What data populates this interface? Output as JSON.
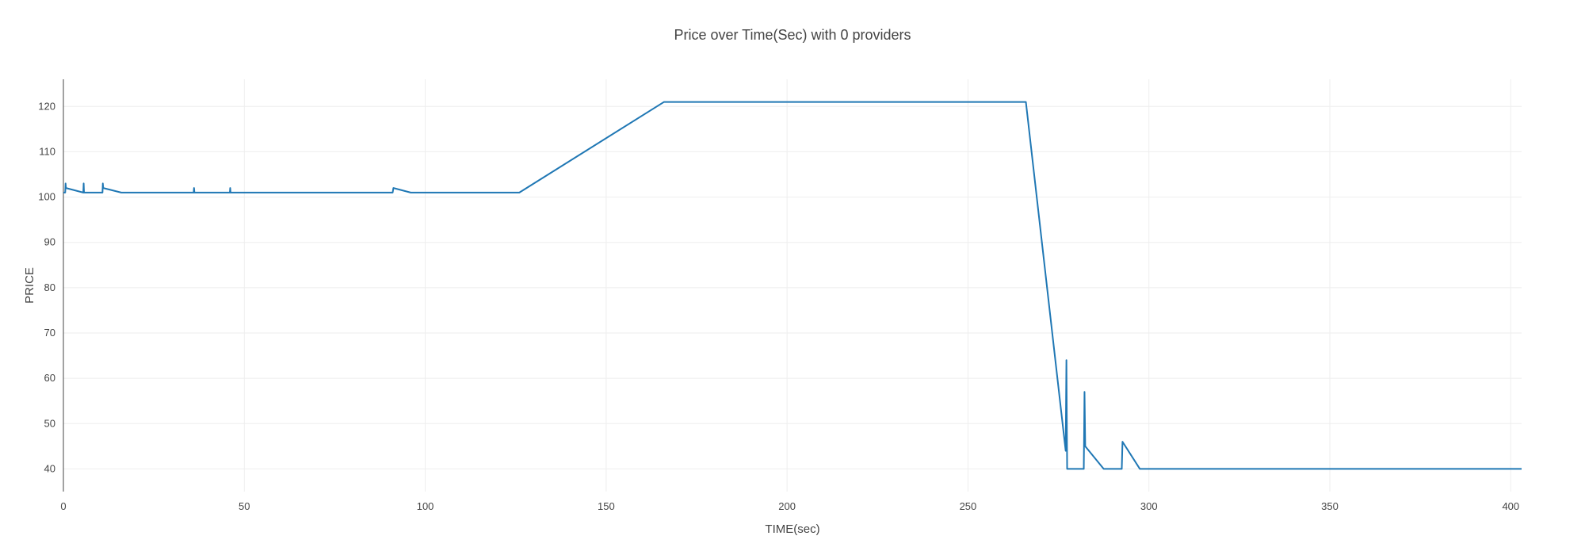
{
  "chart_data": {
    "type": "line",
    "title": "Price over Time(Sec) with 0 providers",
    "xlabel": "TIME(sec)",
    "ylabel": "PRICE",
    "xlim": [
      0,
      403
    ],
    "ylim": [
      35,
      126
    ],
    "xticks": [
      0,
      50,
      100,
      150,
      200,
      250,
      300,
      350,
      400
    ],
    "yticks": [
      40,
      50,
      60,
      70,
      80,
      90,
      100,
      110,
      120
    ],
    "grid": true,
    "colors": {
      "line": "#1f77b4",
      "axis": "#444444",
      "grid": "#eeeeee",
      "text": "#444444"
    },
    "series": [
      {
        "name": "price",
        "points": [
          [
            0,
            101
          ],
          [
            0.5,
            101
          ],
          [
            0.6,
            103
          ],
          [
            0.7,
            102
          ],
          [
            5.5,
            101
          ],
          [
            5.6,
            103
          ],
          [
            5.7,
            101
          ],
          [
            10.8,
            101
          ],
          [
            10.9,
            103
          ],
          [
            11,
            102
          ],
          [
            16,
            101
          ],
          [
            36,
            101
          ],
          [
            36.1,
            102
          ],
          [
            36.2,
            101
          ],
          [
            46,
            101
          ],
          [
            46.1,
            102
          ],
          [
            46.2,
            101
          ],
          [
            91,
            101
          ],
          [
            91.2,
            102
          ],
          [
            96,
            101
          ],
          [
            126,
            101
          ],
          [
            166,
            121
          ],
          [
            266,
            121
          ],
          [
            277,
            44
          ],
          [
            277.2,
            64
          ],
          [
            277.4,
            40
          ],
          [
            282,
            40
          ],
          [
            282.2,
            57
          ],
          [
            282.4,
            45
          ],
          [
            287.5,
            40
          ],
          [
            292.5,
            40
          ],
          [
            292.7,
            46
          ],
          [
            297.5,
            40
          ],
          [
            403,
            40
          ]
        ]
      }
    ]
  }
}
